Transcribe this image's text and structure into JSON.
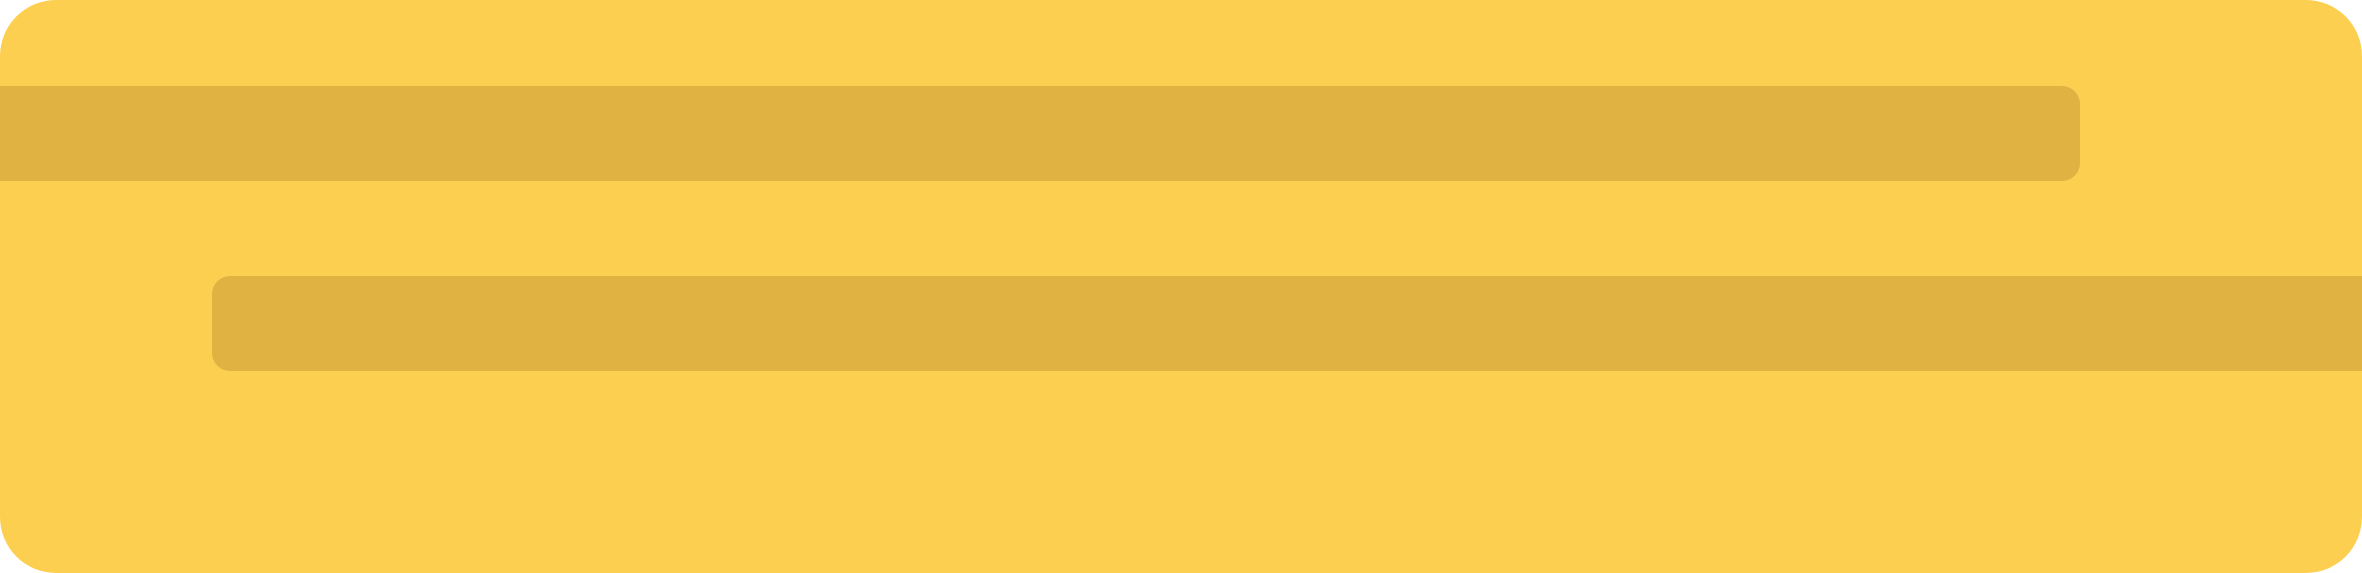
{
  "colors": {
    "card_background": "#FDCF51",
    "bar_fill": "#E0B242"
  },
  "placeholder_card": {
    "bars": [
      {
        "name": "top-bar",
        "text": ""
      },
      {
        "name": "bottom-bar",
        "text": ""
      }
    ]
  }
}
